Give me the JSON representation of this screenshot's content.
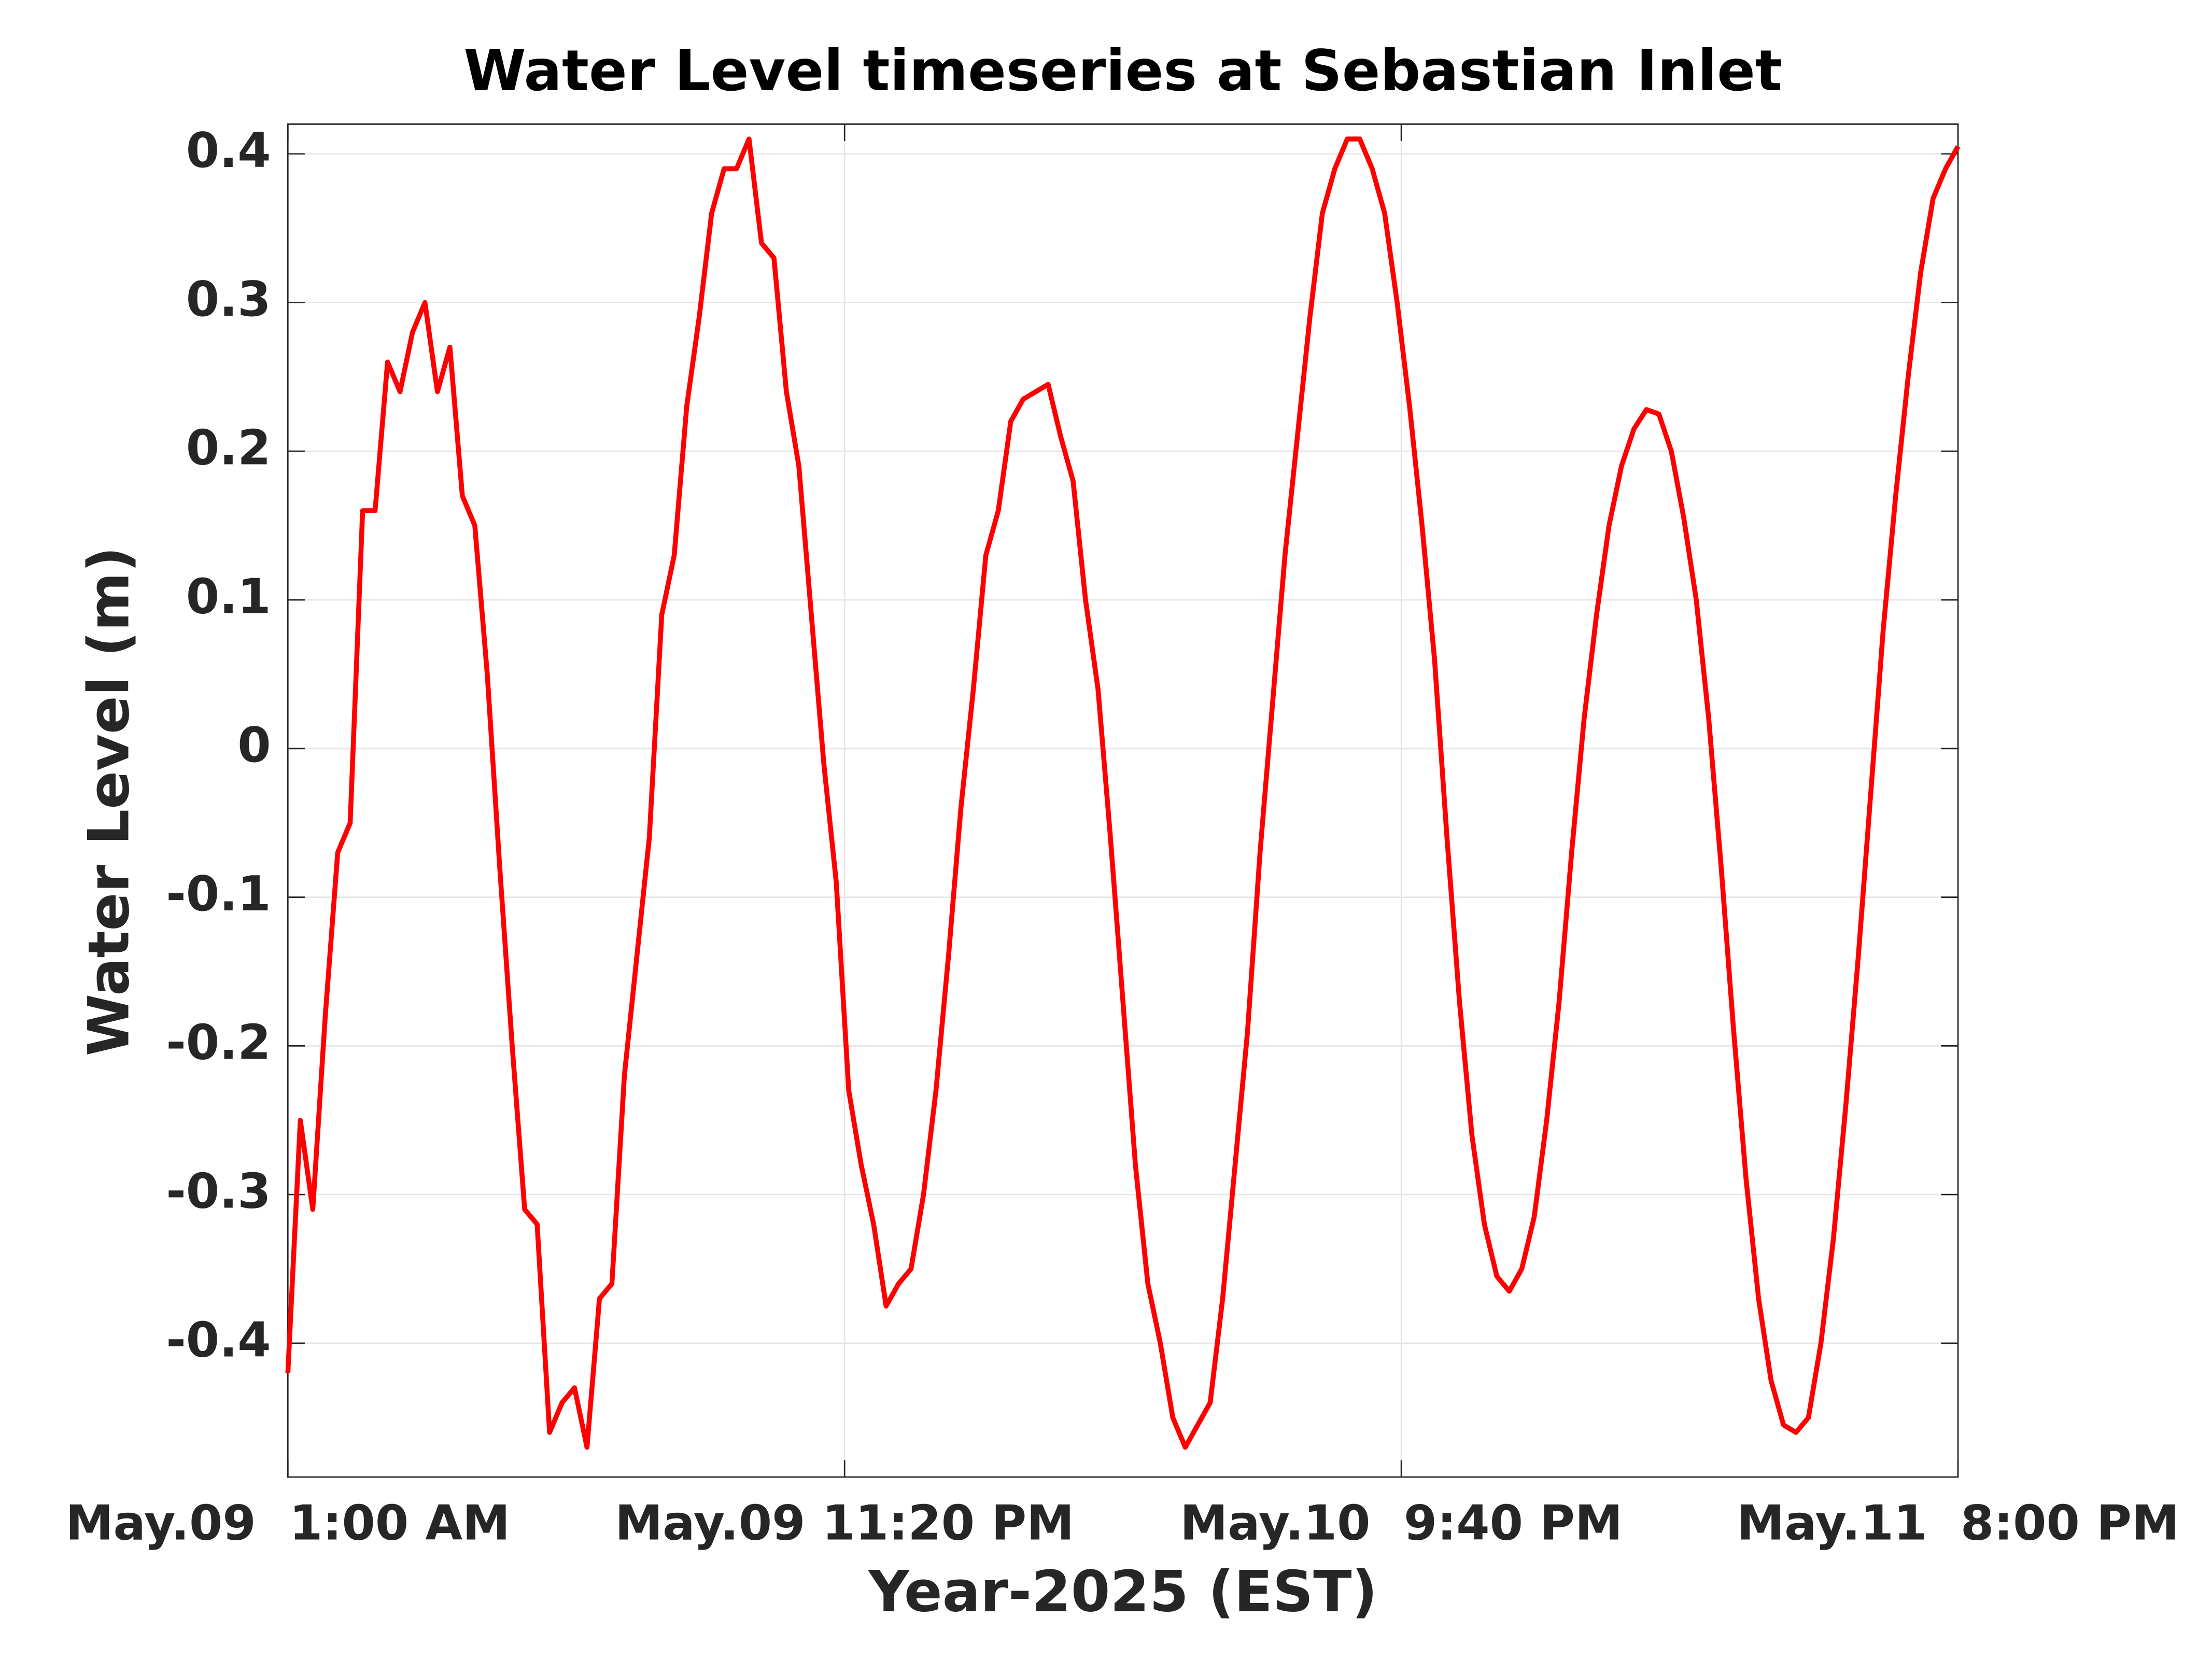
{
  "chart_data": {
    "type": "line",
    "title": "Water Level timeseries at Sebastian Inlet",
    "xlabel": "Year-2025 (EST)",
    "ylabel": "Water Level (m)",
    "color": "#ff0000",
    "grid": true,
    "x": [
      "2025-05-09T01:00",
      "2025-05-09T01:30",
      "2025-05-09T02:00",
      "2025-05-09T02:30",
      "2025-05-09T03:00",
      "2025-05-09T03:30",
      "2025-05-09T04:00",
      "2025-05-09T04:30",
      "2025-05-09T05:00",
      "2025-05-09T05:30",
      "2025-05-09T06:00",
      "2025-05-09T06:30",
      "2025-05-09T07:00",
      "2025-05-09T07:30",
      "2025-05-09T08:00",
      "2025-05-09T08:30",
      "2025-05-09T09:00",
      "2025-05-09T09:30",
      "2025-05-09T10:00",
      "2025-05-09T10:30",
      "2025-05-09T11:00",
      "2025-05-09T11:30",
      "2025-05-09T12:00",
      "2025-05-09T12:30",
      "2025-05-09T13:00",
      "2025-05-09T13:30",
      "2025-05-09T14:00",
      "2025-05-09T14:30",
      "2025-05-09T15:00",
      "2025-05-09T15:30",
      "2025-05-09T16:00",
      "2025-05-09T16:30",
      "2025-05-09T17:00",
      "2025-05-09T17:30",
      "2025-05-09T18:00",
      "2025-05-09T18:30",
      "2025-05-09T19:00",
      "2025-05-09T19:30",
      "2025-05-09T20:00",
      "2025-05-09T20:30",
      "2025-05-09T21:00",
      "2025-05-09T21:30",
      "2025-05-09T22:00",
      "2025-05-09T22:30",
      "2025-05-09T23:00",
      "2025-05-09T23:30",
      "2025-05-10T00:00",
      "2025-05-10T00:30",
      "2025-05-10T01:00",
      "2025-05-10T01:30",
      "2025-05-10T02:00",
      "2025-05-10T02:30",
      "2025-05-10T03:00",
      "2025-05-10T03:30",
      "2025-05-10T04:00",
      "2025-05-10T04:30",
      "2025-05-10T05:00",
      "2025-05-10T05:30",
      "2025-05-10T06:00",
      "2025-05-10T06:30",
      "2025-05-10T07:00",
      "2025-05-10T07:30",
      "2025-05-10T08:00",
      "2025-05-10T08:30",
      "2025-05-10T09:00",
      "2025-05-10T09:30",
      "2025-05-10T10:00",
      "2025-05-10T10:30",
      "2025-05-10T11:00",
      "2025-05-10T11:30",
      "2025-05-10T12:00",
      "2025-05-10T12:30",
      "2025-05-10T13:00",
      "2025-05-10T13:30",
      "2025-05-10T14:00",
      "2025-05-10T14:30",
      "2025-05-10T15:00",
      "2025-05-10T15:30",
      "2025-05-10T16:00",
      "2025-05-10T16:30",
      "2025-05-10T17:00",
      "2025-05-10T17:30",
      "2025-05-10T18:00",
      "2025-05-10T18:30",
      "2025-05-10T19:00",
      "2025-05-10T19:30",
      "2025-05-10T20:00",
      "2025-05-10T20:30",
      "2025-05-10T21:00",
      "2025-05-10T21:30",
      "2025-05-10T22:00",
      "2025-05-10T22:30",
      "2025-05-10T23:00",
      "2025-05-10T23:30",
      "2025-05-11T00:00",
      "2025-05-11T00:30",
      "2025-05-11T01:00",
      "2025-05-11T01:30",
      "2025-05-11T02:00",
      "2025-05-11T02:30",
      "2025-05-11T03:00",
      "2025-05-11T03:30",
      "2025-05-11T04:00",
      "2025-05-11T04:30",
      "2025-05-11T05:00",
      "2025-05-11T05:30",
      "2025-05-11T06:00",
      "2025-05-11T06:30",
      "2025-05-11T07:00",
      "2025-05-11T07:30",
      "2025-05-11T08:00",
      "2025-05-11T08:30",
      "2025-05-11T09:00",
      "2025-05-11T09:30",
      "2025-05-11T10:00",
      "2025-05-11T10:30",
      "2025-05-11T11:00",
      "2025-05-11T11:30",
      "2025-05-11T12:00",
      "2025-05-11T12:30",
      "2025-05-11T13:00",
      "2025-05-11T13:30",
      "2025-05-11T14:00",
      "2025-05-11T14:30",
      "2025-05-11T15:00",
      "2025-05-11T15:30",
      "2025-05-11T16:00",
      "2025-05-11T16:30",
      "2025-05-11T17:00",
      "2025-05-11T17:30",
      "2025-05-11T18:00",
      "2025-05-11T18:30",
      "2025-05-11T19:00",
      "2025-05-11T19:30",
      "2025-05-11T20:00"
    ],
    "values": [
      -0.42,
      -0.25,
      -0.31,
      -0.18,
      -0.07,
      -0.05,
      0.16,
      0.16,
      0.26,
      0.24,
      0.28,
      0.3,
      0.24,
      0.27,
      0.17,
      0.15,
      0.05,
      -0.08,
      -0.2,
      -0.31,
      -0.32,
      -0.46,
      -0.44,
      -0.43,
      -0.47,
      -0.37,
      -0.36,
      -0.22,
      -0.14,
      -0.06,
      0.09,
      0.13,
      0.23,
      0.29,
      0.36,
      0.39,
      0.39,
      0.41,
      0.34,
      0.33,
      0.24,
      0.19,
      0.09,
      -0.01,
      -0.09,
      -0.23,
      -0.28,
      -0.32,
      -0.375,
      -0.36,
      -0.35,
      -0.3,
      -0.23,
      -0.14,
      -0.04,
      0.04,
      0.13,
      0.16,
      0.22,
      0.235,
      0.24,
      0.245,
      0.21,
      0.18,
      0.1,
      0.04,
      -0.06,
      -0.17,
      -0.28,
      -0.36,
      -0.4,
      -0.45,
      -0.47,
      -0.455,
      -0.44,
      -0.37,
      -0.28,
      -0.19,
      -0.07,
      0.03,
      0.13,
      0.21,
      0.29,
      0.36,
      0.39,
      0.41,
      0.41,
      0.39,
      0.36,
      0.3,
      0.23,
      0.15,
      0.06,
      -0.06,
      -0.17,
      -0.26,
      -0.32,
      -0.355,
      -0.365,
      -0.35,
      -0.315,
      -0.25,
      -0.17,
      -0.07,
      0.02,
      0.09,
      0.15,
      0.19,
      0.215,
      0.228,
      0.225,
      0.2,
      0.155,
      0.1,
      0.02,
      -0.08,
      -0.19,
      -0.29,
      -0.37,
      -0.425,
      -0.455,
      -0.46,
      -0.45,
      -0.4,
      -0.33,
      -0.24,
      -0.14,
      -0.03,
      0.08,
      0.17,
      0.25,
      0.32,
      0.37,
      0.39,
      0.405
    ],
    "xlim": [
      "2025-05-09T01:00",
      "2025-05-11T20:00"
    ],
    "xticks": [
      {
        "value": "2025-05-09T01:00",
        "label": "May.09  1:00 AM"
      },
      {
        "value": "2025-05-09T23:20",
        "label": "May.09 11:20 PM"
      },
      {
        "value": "2025-05-10T21:40",
        "label": "May.10  9:40 PM"
      },
      {
        "value": "2025-05-11T20:00",
        "label": "May.11  8:00 PM"
      }
    ],
    "ylim": [
      -0.49,
      0.42
    ],
    "yticks": [
      -0.4,
      -0.3,
      -0.2,
      -0.1,
      0,
      0.1,
      0.2,
      0.3,
      0.4
    ]
  }
}
